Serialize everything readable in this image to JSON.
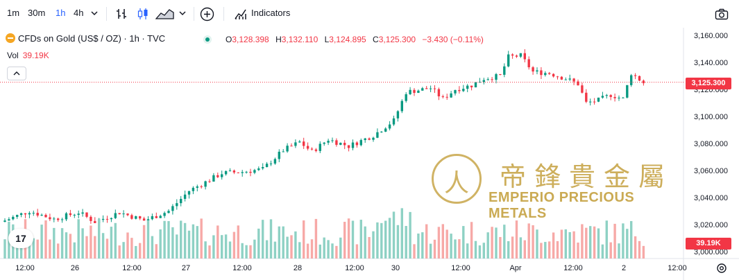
{
  "toolbar": {
    "intervals": [
      "1m",
      "30m",
      "1h",
      "4h"
    ],
    "active_interval": "1h",
    "indicators_label": "Indicators"
  },
  "legend": {
    "symbol": "CFDs on Gold (US$ / OZ) · 1h · TVC",
    "o_label": "O",
    "o_value": "3,128.398",
    "h_label": "H",
    "h_value": "3,132.110",
    "l_label": "L",
    "l_value": "3,124.895",
    "c_label": "C",
    "c_value": "3,125.300",
    "change": "−3.430 (−0.11%)"
  },
  "volume": {
    "label": "Vol",
    "value": "39.19K"
  },
  "price_tag": "3,125.300",
  "volume_tag": "39.19K",
  "watermark": {
    "cn": "帝鋒貴金屬",
    "en": "EMPERIO PRECIOUS METALS"
  },
  "tv_logo": "17",
  "colors": {
    "up": "#089981",
    "down": "#f23645",
    "vol_up": "#8ed1c4",
    "vol_down": "#f7a9a7",
    "watermark": "#c8a64a"
  },
  "chart_data": {
    "type": "candlestick",
    "y_ticks": [
      "3,160.000",
      "3,140.000",
      "3,120.000",
      "3,100.000",
      "3,080.000",
      "3,060.000",
      "3,040.000",
      "3,020.000",
      "3,000.000"
    ],
    "ylim": [
      2995,
      3165
    ],
    "x_ticks": [
      "12:00",
      "26",
      "12:00",
      "27",
      "12:00",
      "28",
      "12:00",
      "30",
      "12:00",
      "Apr",
      "12:00",
      "2",
      "12:00"
    ],
    "last_price": 3125.3,
    "series": [
      {
        "name": "price",
        "anchors": [
          [
            0,
            3023
          ],
          [
            6,
            3030
          ],
          [
            12,
            3024
          ],
          [
            18,
            3029
          ],
          [
            22,
            3022
          ],
          [
            28,
            3029
          ],
          [
            34,
            3023
          ],
          [
            40,
            3030
          ],
          [
            45,
            3045
          ],
          [
            50,
            3053
          ],
          [
            53,
            3058
          ],
          [
            58,
            3059
          ],
          [
            63,
            3061
          ],
          [
            68,
            3075
          ],
          [
            72,
            3081
          ],
          [
            75,
            3074
          ],
          [
            79,
            3083
          ],
          [
            84,
            3078
          ],
          [
            90,
            3086
          ],
          [
            95,
            3097
          ],
          [
            98,
            3118
          ],
          [
            104,
            3121
          ],
          [
            107,
            3113
          ],
          [
            110,
            3120
          ],
          [
            114,
            3123
          ],
          [
            117,
            3128
          ],
          [
            121,
            3130
          ],
          [
            123,
            3144
          ],
          [
            126,
            3145
          ],
          [
            129,
            3133
          ],
          [
            133,
            3132
          ],
          [
            137,
            3128
          ],
          [
            140,
            3124
          ],
          [
            142,
            3110
          ],
          [
            145,
            3112
          ],
          [
            148,
            3116
          ],
          [
            151,
            3113
          ],
          [
            153,
            3132
          ],
          [
            156,
            3125
          ]
        ]
      }
    ]
  }
}
